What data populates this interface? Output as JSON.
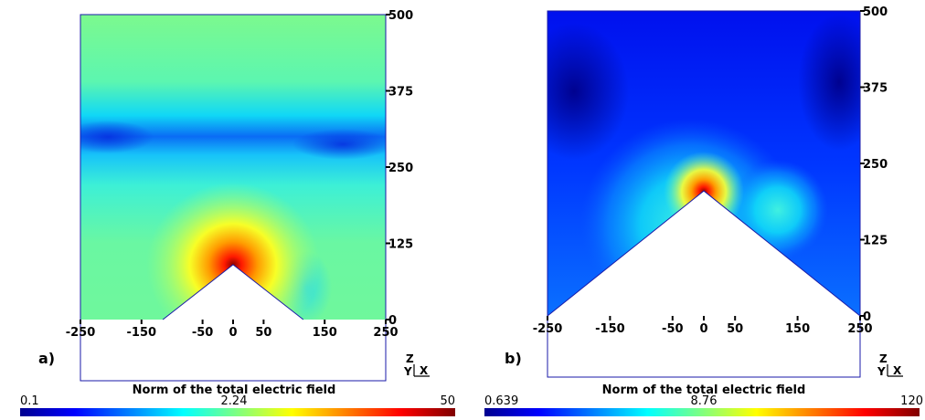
{
  "chart_data": [
    {
      "type": "heatmap",
      "panel_label": "a)",
      "quantity": "Norm of the total electric field",
      "x_ticks": [
        "-250",
        "-150",
        "-50",
        "0",
        "50",
        "150",
        "250"
      ],
      "y_ticks": [
        "0",
        "125",
        "250",
        "375",
        "500"
      ],
      "xlim": [
        -250,
        250
      ],
      "ylim": [
        0,
        500
      ],
      "colorbar": {
        "min": "0.1",
        "mid": "2.24",
        "max": "50",
        "colormap": "jet"
      },
      "tip": {
        "apex": [
          0,
          90
        ],
        "base_half_width": 115
      },
      "axes_triad": {
        "z": "Z",
        "y": "Y",
        "x": "X"
      },
      "grid": false
    },
    {
      "type": "heatmap",
      "panel_label": "b)",
      "quantity": "Norm of the total electric field",
      "x_ticks": [
        "-250",
        "-150",
        "-50",
        "0",
        "50",
        "150",
        "250"
      ],
      "y_ticks": [
        "0",
        "125",
        "250",
        "375",
        "500"
      ],
      "xlim": [
        -250,
        250
      ],
      "ylim": [
        0,
        500
      ],
      "colorbar": {
        "min": "0.639",
        "mid": "8.76",
        "max": "120",
        "colormap": "jet"
      },
      "tip": {
        "apex": [
          0,
          205
        ],
        "base_half_width": 250
      },
      "axes_triad": {
        "z": "Z",
        "y": "Y",
        "x": "X"
      },
      "grid": false
    }
  ]
}
